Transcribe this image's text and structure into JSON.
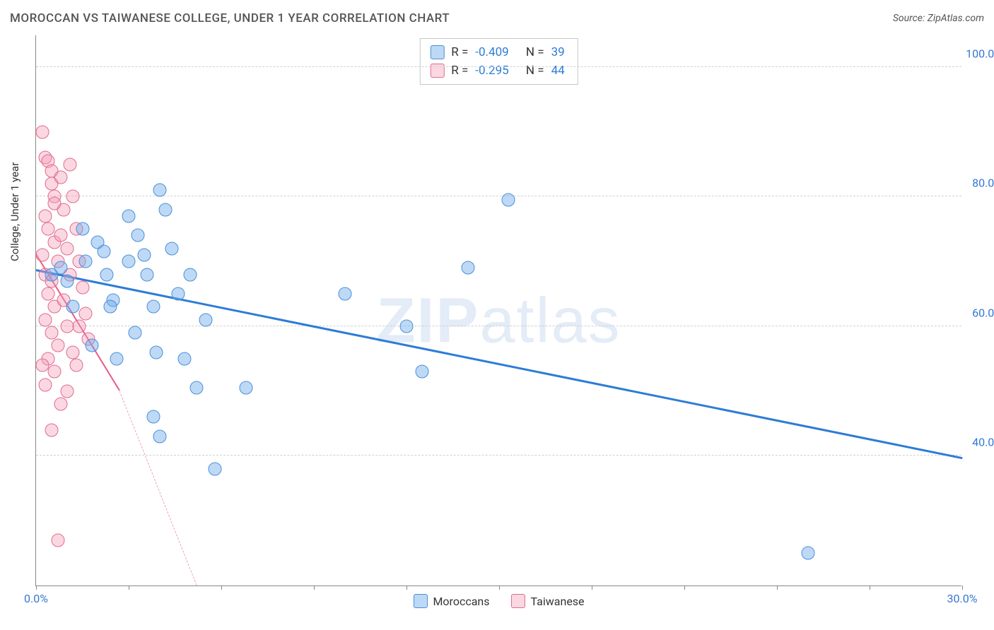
{
  "header": {
    "title": "MOROCCAN VS TAIWANESE COLLEGE, UNDER 1 YEAR CORRELATION CHART",
    "source_prefix": "Source: ",
    "source_name": "ZipAtlas.com"
  },
  "watermark": {
    "zip": "ZIP",
    "atlas": "atlas"
  },
  "chart": {
    "type": "scatter",
    "ylabel": "College, Under 1 year",
    "xlim": [
      0,
      30
    ],
    "ylim": [
      20,
      105
    ],
    "xtick_positions": [
      0,
      3,
      6,
      9,
      12,
      15,
      18,
      21,
      24,
      27,
      30
    ],
    "xtick_labels": {
      "0": "0.0%",
      "30": "30.0%"
    },
    "ytick_positions": [
      40,
      60,
      80,
      100
    ],
    "ytick_labels": {
      "40": "40.0%",
      "60": "60.0%",
      "80": "80.0%",
      "100": "100.0%"
    },
    "background_color": "#ffffff",
    "grid_color": "#d0d0d0",
    "axis_color": "#888888",
    "tick_label_color": "#3478d2",
    "marker_size": 19,
    "series": {
      "moroccans": {
        "label": "Moroccans",
        "fill": "rgba(110,170,235,0.45)",
        "stroke": "#4a8fd8",
        "R": "-0.409",
        "N": "39",
        "trend": {
          "x1": 0,
          "y1": 68.5,
          "x2": 30,
          "y2": 39.5,
          "color": "#2d7cd6"
        },
        "points": [
          [
            0.5,
            68
          ],
          [
            1.0,
            67
          ],
          [
            0.8,
            69
          ],
          [
            1.5,
            75
          ],
          [
            2.0,
            73
          ],
          [
            2.2,
            71.5
          ],
          [
            2.3,
            68
          ],
          [
            2.5,
            64
          ],
          [
            3.0,
            77
          ],
          [
            3.3,
            74
          ],
          [
            3.5,
            71
          ],
          [
            3.6,
            68
          ],
          [
            3.8,
            63
          ],
          [
            3.9,
            56
          ],
          [
            4.0,
            81
          ],
          [
            4.2,
            78
          ],
          [
            4.6,
            65
          ],
          [
            5.0,
            68
          ],
          [
            5.2,
            50.5
          ],
          [
            5.5,
            61
          ],
          [
            3.8,
            46
          ],
          [
            4.0,
            43
          ],
          [
            5.8,
            38
          ],
          [
            6.8,
            50.5
          ],
          [
            10.0,
            65
          ],
          [
            12.0,
            60
          ],
          [
            12.5,
            53
          ],
          [
            15.3,
            79.5
          ],
          [
            14.0,
            69
          ],
          [
            25.0,
            25
          ],
          [
            2.6,
            55
          ],
          [
            1.8,
            57
          ],
          [
            1.2,
            63
          ],
          [
            3.2,
            59
          ],
          [
            4.8,
            55
          ],
          [
            2.4,
            63
          ],
          [
            3.0,
            70
          ],
          [
            1.6,
            70
          ],
          [
            4.4,
            72
          ]
        ]
      },
      "taiwanese": {
        "label": "Taiwanese",
        "fill": "rgba(245,155,180,0.40)",
        "stroke": "#e06a90",
        "R": "-0.295",
        "N": "44",
        "trend_solid": {
          "x1": 0,
          "y1": 71,
          "x2": 2.7,
          "y2": 50,
          "color": "#e85a8a"
        },
        "trend_dash": {
          "x1": 2.7,
          "y1": 50,
          "x2": 5.2,
          "y2": 20,
          "color": "#f0a0b8"
        },
        "points": [
          [
            0.2,
            90
          ],
          [
            0.3,
            86
          ],
          [
            0.4,
            85.5
          ],
          [
            0.5,
            84
          ],
          [
            0.5,
            82
          ],
          [
            0.6,
            80
          ],
          [
            0.3,
            77
          ],
          [
            0.4,
            75
          ],
          [
            0.6,
            73
          ],
          [
            0.2,
            71
          ],
          [
            0.7,
            70
          ],
          [
            0.3,
            68
          ],
          [
            0.5,
            67
          ],
          [
            0.4,
            65
          ],
          [
            0.6,
            63
          ],
          [
            0.3,
            61
          ],
          [
            0.5,
            59
          ],
          [
            0.7,
            57
          ],
          [
            0.4,
            55
          ],
          [
            0.6,
            53
          ],
          [
            0.3,
            51
          ],
          [
            0.8,
            48
          ],
          [
            0.5,
            44
          ],
          [
            0.7,
            27
          ],
          [
            1.1,
            85
          ],
          [
            1.2,
            80
          ],
          [
            1.3,
            75
          ],
          [
            1.4,
            70
          ],
          [
            1.5,
            66
          ],
          [
            1.6,
            62
          ],
          [
            1.7,
            58
          ],
          [
            1.0,
            72
          ],
          [
            1.2,
            56
          ],
          [
            0.9,
            78
          ],
          [
            1.4,
            60
          ],
          [
            0.8,
            83
          ],
          [
            0.9,
            64
          ],
          [
            1.1,
            68
          ],
          [
            1.3,
            54
          ],
          [
            1.0,
            50
          ],
          [
            0.6,
            79
          ],
          [
            0.8,
            74
          ],
          [
            1.0,
            60
          ],
          [
            0.2,
            54
          ]
        ]
      }
    }
  },
  "legend_top": {
    "r_label": "R =",
    "n_label": "N ="
  }
}
